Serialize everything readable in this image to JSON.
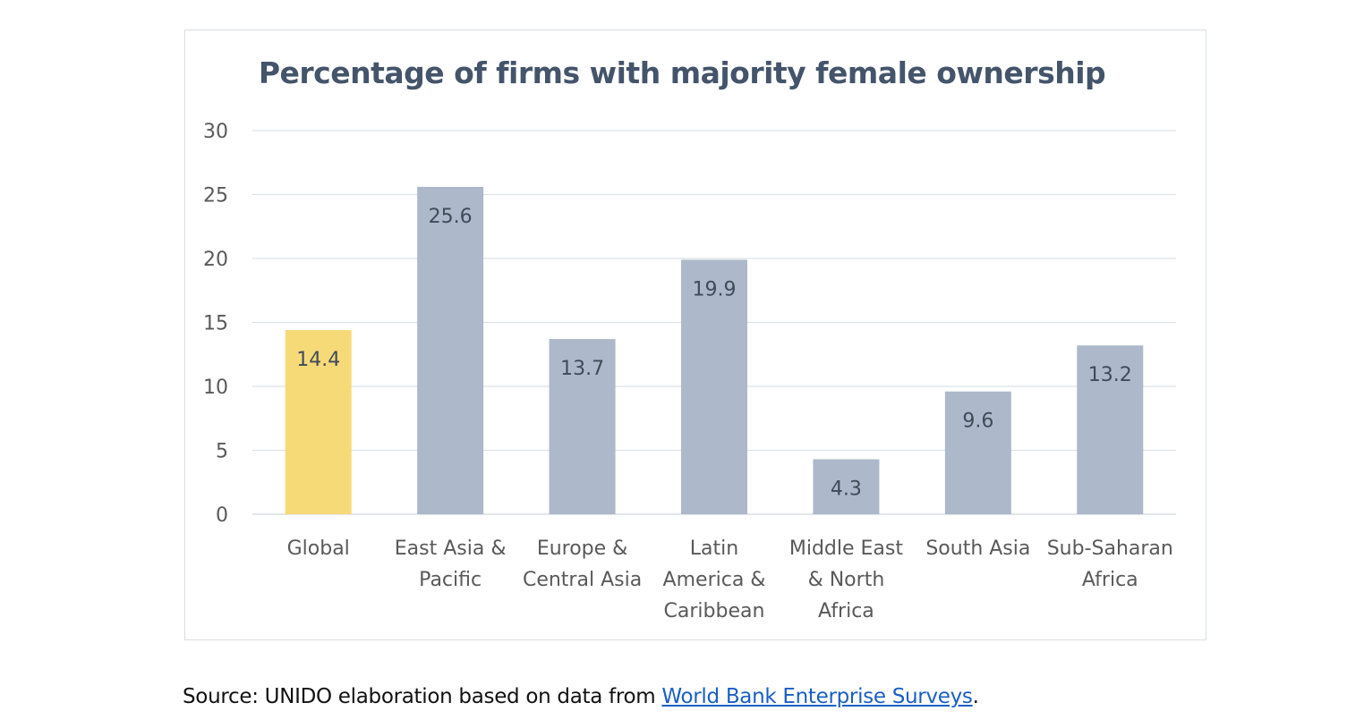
{
  "chart_data": {
    "type": "bar",
    "title": "Percentage of firms with majority female ownership",
    "xlabel": "",
    "ylabel": "",
    "ylim": [
      0,
      30
    ],
    "yticks": [
      0,
      5,
      10,
      15,
      20,
      25,
      30
    ],
    "grid": true,
    "categories": [
      [
        "Global"
      ],
      [
        "East Asia &",
        "Pacific"
      ],
      [
        "Europe &",
        "Central Asia"
      ],
      [
        "Latin",
        "America &",
        "Caribbean"
      ],
      [
        "Middle East",
        "& North",
        "Africa"
      ],
      [
        "South Asia"
      ],
      [
        "Sub-Saharan",
        "Africa"
      ]
    ],
    "values": [
      14.4,
      25.6,
      13.7,
      19.9,
      4.3,
      9.6,
      13.2
    ],
    "data_labels": [
      "14.4",
      "25.6",
      "13.7",
      "19.9",
      "4.3",
      "9.6",
      "13.2"
    ],
    "highlight_index": 0,
    "colors": {
      "highlight": "#f7da78",
      "bar": "#adb9ca",
      "grid": "#dde2e8",
      "tick_text": "#595959",
      "label_text": "#404b59"
    }
  },
  "source": {
    "prefix": "Source: UNIDO elaboration based on data from ",
    "link_text": "World Bank Enterprise Surveys",
    "suffix": "."
  }
}
